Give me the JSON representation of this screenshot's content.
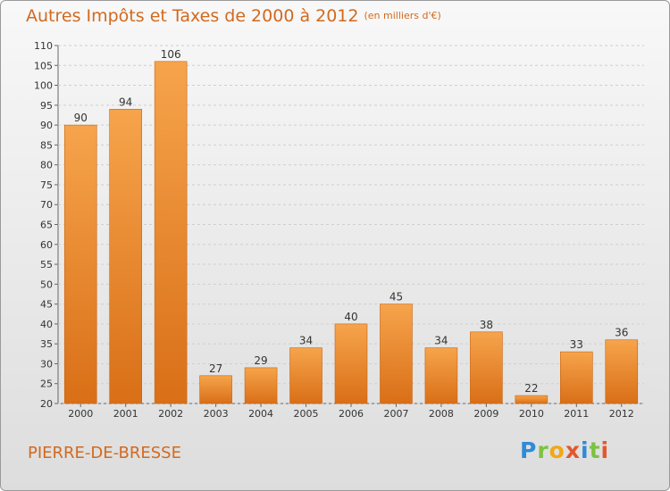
{
  "title": "Autres Impôts et Taxes de 2000 à 2012",
  "unit": "(en milliers d'€)",
  "commune": "PIERRE-DE-BRESSE",
  "logo": {
    "letters": [
      {
        "t": "P",
        "color": "#2e8bd8"
      },
      {
        "t": "r",
        "color": "#7cc243"
      },
      {
        "t": "o",
        "color": "#f3a712"
      },
      {
        "t": "x",
        "color": "#e4572e"
      },
      {
        "t": "i",
        "color": "#2e8bd8"
      },
      {
        "t": "t",
        "color": "#7cc243"
      },
      {
        "t": "i",
        "color": "#e4572e"
      }
    ]
  },
  "colors": {
    "bar_light": "#f6a44c",
    "bar_dark": "#d96f17",
    "text": "#d2691e"
  },
  "chart_data": {
    "type": "bar",
    "title": "Autres Impôts et Taxes de 2000 à 2012",
    "xlabel": "",
    "ylabel": "",
    "categories": [
      "2000",
      "2001",
      "2002",
      "2003",
      "2004",
      "2005",
      "2006",
      "2007",
      "2008",
      "2009",
      "2010",
      "2011",
      "2012"
    ],
    "values": [
      90,
      94,
      106,
      27,
      29,
      34,
      40,
      45,
      34,
      38,
      22,
      33,
      36
    ],
    "ylim": [
      20,
      110
    ],
    "yticks": [
      20,
      25,
      30,
      35,
      40,
      45,
      50,
      55,
      60,
      65,
      70,
      75,
      80,
      85,
      90,
      95,
      100,
      105,
      110
    ],
    "grid": true,
    "legend": "none"
  }
}
